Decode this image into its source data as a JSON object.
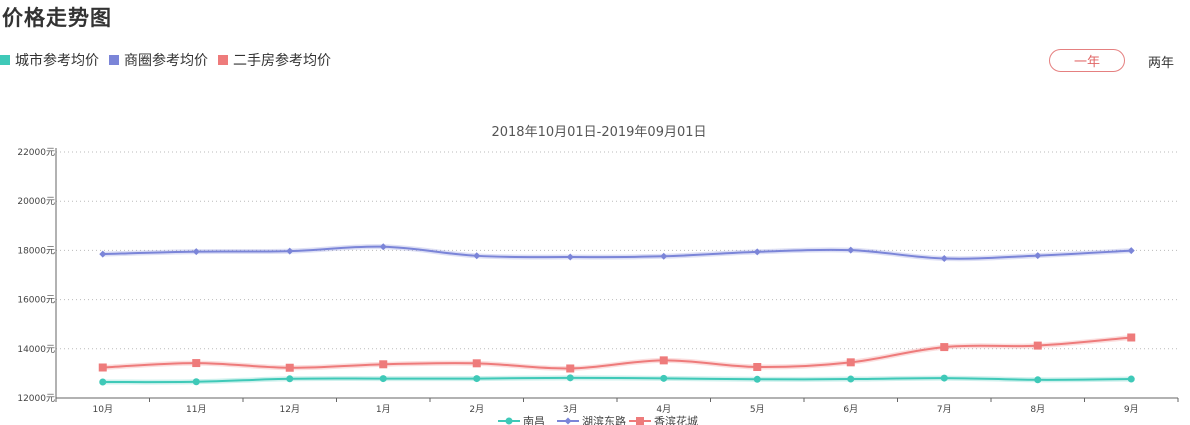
{
  "page": {
    "title": "价格走势图"
  },
  "legend_top": [
    {
      "label": "城市参考均价",
      "color": "#3fc9b8"
    },
    {
      "label": "商圈参考均价",
      "color": "#7b85d8"
    },
    {
      "label": "二手房参考均价",
      "color": "#ee7b7b"
    }
  ],
  "range": {
    "active": "一年",
    "other": "两年"
  },
  "chart_data": {
    "type": "line",
    "subtitle": "2018年10月01日-2019年09月01日",
    "categories": [
      "10月",
      "11月",
      "12月",
      "1月",
      "2月",
      "3月",
      "4月",
      "5月",
      "6月",
      "7月",
      "8月",
      "9月"
    ],
    "y_ticks": [
      "12000元",
      "14000元",
      "16000元",
      "18000元",
      "20000元",
      "22000元"
    ],
    "ylim": [
      12000,
      22000
    ],
    "grid": true,
    "legend_position": "bottom",
    "series": [
      {
        "name": "南昌",
        "color": "#3fc9b8",
        "marker": "circle",
        "values": [
          12650,
          12660,
          12780,
          12790,
          12790,
          12820,
          12800,
          12760,
          12770,
          12810,
          12740,
          12770
        ]
      },
      {
        "name": "湖滨东路",
        "color": "#7b85d8",
        "marker": "diamond",
        "values": [
          17850,
          17950,
          17970,
          18150,
          17780,
          17730,
          17760,
          17940,
          18010,
          17670,
          17790,
          17990
        ]
      },
      {
        "name": "香滨花城",
        "color": "#ee7b7b",
        "marker": "square",
        "values": [
          13240,
          13420,
          13230,
          13370,
          13410,
          13200,
          13530,
          13260,
          13450,
          14070,
          14130,
          14460
        ]
      }
    ]
  }
}
